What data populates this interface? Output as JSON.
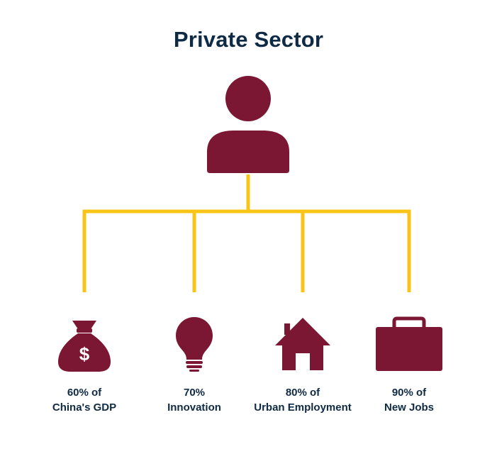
{
  "title": "Private Sector",
  "colors": {
    "title_text": "#0f2a44",
    "icon_fill": "#7b1633",
    "connector_line": "#f7c417"
  },
  "root_icon": "person-icon",
  "items": [
    {
      "icon": "money-bag-icon",
      "line1": "60% of",
      "line2": "China's GDP"
    },
    {
      "icon": "lightbulb-icon",
      "line1": "70%",
      "line2": "Innovation"
    },
    {
      "icon": "house-icon",
      "line1": "80% of",
      "line2": "Urban Employment"
    },
    {
      "icon": "briefcase-icon",
      "line1": "90% of",
      "line2": "New Jobs"
    }
  ]
}
